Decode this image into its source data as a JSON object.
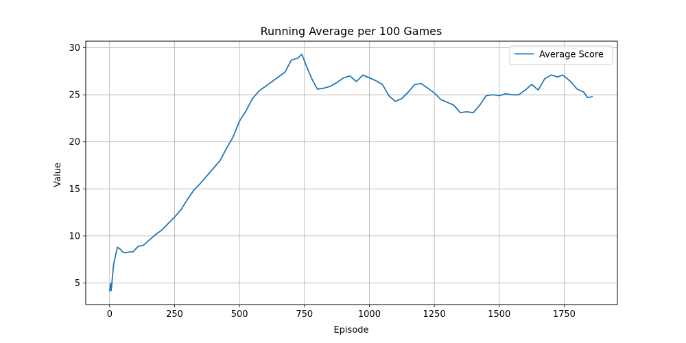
{
  "chart_data": {
    "type": "line",
    "title": "Running Average per 100 Games",
    "xlabel": "Episode",
    "ylabel": "Value",
    "xlim": [
      -92,
      1955
    ],
    "ylim": [
      2.7,
      30.7
    ],
    "xticks": [
      0,
      250,
      500,
      750,
      1000,
      1250,
      1500,
      1750
    ],
    "yticks": [
      5,
      10,
      15,
      20,
      25,
      30
    ],
    "grid": true,
    "legend_position": "top-right",
    "series": [
      {
        "name": "Average Score",
        "color": "#1f77b4",
        "points": [
          [
            0,
            4.1
          ],
          [
            3,
            4.9
          ],
          [
            6,
            4.2
          ],
          [
            10,
            5.4
          ],
          [
            15,
            6.9
          ],
          [
            20,
            7.6
          ],
          [
            25,
            8.2
          ],
          [
            30,
            8.8
          ],
          [
            40,
            8.6
          ],
          [
            50,
            8.3
          ],
          [
            60,
            8.2
          ],
          [
            75,
            8.3
          ],
          [
            90,
            8.3
          ],
          [
            100,
            8.6
          ],
          [
            110,
            8.9
          ],
          [
            130,
            9.0
          ],
          [
            150,
            9.5
          ],
          [
            175,
            10.1
          ],
          [
            200,
            10.6
          ],
          [
            225,
            11.3
          ],
          [
            250,
            12.0
          ],
          [
            275,
            12.8
          ],
          [
            300,
            13.9
          ],
          [
            325,
            14.9
          ],
          [
            350,
            15.6
          ],
          [
            375,
            16.4
          ],
          [
            400,
            17.2
          ],
          [
            425,
            18.0
          ],
          [
            450,
            19.3
          ],
          [
            475,
            20.5
          ],
          [
            500,
            22.2
          ],
          [
            525,
            23.3
          ],
          [
            550,
            24.6
          ],
          [
            575,
            25.4
          ],
          [
            600,
            25.9
          ],
          [
            625,
            26.4
          ],
          [
            650,
            26.9
          ],
          [
            675,
            27.4
          ],
          [
            700,
            28.7
          ],
          [
            725,
            28.9
          ],
          [
            740,
            29.3
          ],
          [
            760,
            27.9
          ],
          [
            780,
            26.6
          ],
          [
            800,
            25.6
          ],
          [
            825,
            25.7
          ],
          [
            850,
            25.9
          ],
          [
            875,
            26.3
          ],
          [
            900,
            26.8
          ],
          [
            925,
            27.0
          ],
          [
            950,
            26.4
          ],
          [
            975,
            27.1
          ],
          [
            1000,
            26.8
          ],
          [
            1025,
            26.5
          ],
          [
            1050,
            26.1
          ],
          [
            1075,
            24.9
          ],
          [
            1100,
            24.3
          ],
          [
            1125,
            24.6
          ],
          [
            1150,
            25.3
          ],
          [
            1175,
            26.1
          ],
          [
            1200,
            26.2
          ],
          [
            1225,
            25.7
          ],
          [
            1250,
            25.2
          ],
          [
            1275,
            24.5
          ],
          [
            1300,
            24.2
          ],
          [
            1325,
            23.9
          ],
          [
            1350,
            23.1
          ],
          [
            1375,
            23.2
          ],
          [
            1400,
            23.1
          ],
          [
            1425,
            23.9
          ],
          [
            1450,
            24.9
          ],
          [
            1475,
            25.0
          ],
          [
            1500,
            24.9
          ],
          [
            1525,
            25.1
          ],
          [
            1550,
            25.0
          ],
          [
            1575,
            25.0
          ],
          [
            1600,
            25.5
          ],
          [
            1625,
            26.1
          ],
          [
            1650,
            25.5
          ],
          [
            1675,
            26.7
          ],
          [
            1700,
            27.1
          ],
          [
            1725,
            26.9
          ],
          [
            1745,
            27.1
          ],
          [
            1775,
            26.4
          ],
          [
            1800,
            25.6
          ],
          [
            1825,
            25.3
          ],
          [
            1840,
            24.7
          ],
          [
            1860,
            24.8
          ]
        ]
      }
    ]
  }
}
